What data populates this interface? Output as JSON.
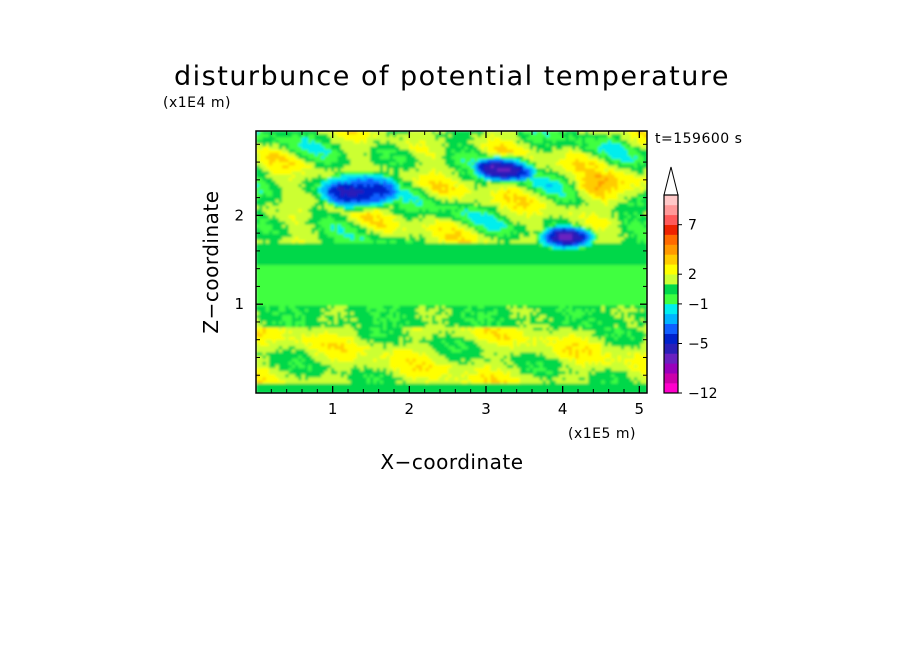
{
  "chart_data": {
    "type": "heatmap",
    "title": "disturbunce of potential temperature",
    "xlabel": "X−coordinate",
    "ylabel": "Z−coordinate",
    "x_multiplier": "(x1E5 m)",
    "y_multiplier": "(x1E4 m)",
    "time_label": "t=159600 s",
    "xlim": [
      0,
      5.1
    ],
    "ylim": [
      0,
      2.95
    ],
    "xticks": [
      "1",
      "2",
      "3",
      "4",
      "5"
    ],
    "yticks": [
      "1",
      "2"
    ],
    "grid": false,
    "colorbar": {
      "levels": [
        -12,
        -10,
        -8,
        -7,
        -6,
        -5,
        -4,
        -3,
        -2,
        -1,
        0,
        1,
        2,
        3,
        4,
        5,
        6,
        7,
        8,
        9,
        10
      ],
      "colors": [
        "#ff00cc",
        "#cc00aa",
        "#9900bb",
        "#6a20c0",
        "#2a1fb8",
        "#0022cc",
        "#0f5fff",
        "#00b4ff",
        "#00eeee",
        "#40ff40",
        "#00d84a",
        "#ccff33",
        "#ffff00",
        "#ffcc00",
        "#ff9900",
        "#ff6a00",
        "#ee2200",
        "#ff5a5a",
        "#ff9999",
        "#ffc8c8"
      ],
      "tick_labels": [
        "−12",
        "−5",
        "−1",
        "2",
        "7"
      ],
      "extend": "max"
    },
    "regions": [
      {
        "name": "near-surface green band",
        "z": [
          0.0,
          0.12
        ],
        "value": 0.5
      },
      {
        "name": "lower yellow band",
        "z": [
          0.12,
          0.75
        ],
        "value": 1.5
      },
      {
        "name": "lower green band",
        "z": [
          0.75,
          1.0
        ],
        "value": 0.5
      },
      {
        "name": "mid cyan band",
        "z": [
          1.0,
          1.45
        ],
        "value": -0.5
      },
      {
        "name": "upper green band",
        "z": [
          1.45,
          1.7
        ],
        "value": 0.5
      },
      {
        "name": "upper yellow band",
        "z": [
          1.7,
          2.95
        ],
        "value": 1.5
      },
      {
        "name": "negative anomaly",
        "x": [
          1.0,
          1.7
        ],
        "z": [
          2.15,
          2.4
        ],
        "value": -5
      },
      {
        "name": "negative anomaly",
        "x": [
          3.0,
          3.5
        ],
        "z": [
          2.45,
          2.6
        ],
        "value": -5
      },
      {
        "name": "negative anomaly",
        "x": [
          3.8,
          4.3
        ],
        "z": [
          1.7,
          1.8
        ],
        "value": -5
      },
      {
        "name": "positive anomaly",
        "x": [
          4.3,
          4.9
        ],
        "z": [
          2.2,
          2.4
        ],
        "value": 4
      }
    ]
  }
}
